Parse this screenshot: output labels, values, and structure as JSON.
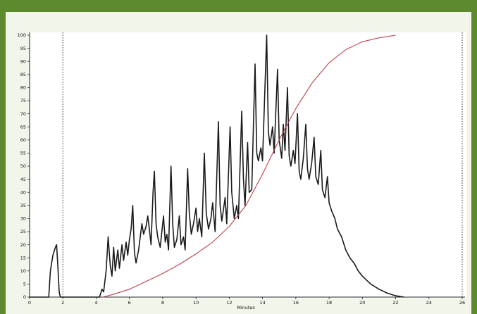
{
  "chart_data": {
    "type": "line",
    "title": "",
    "xlabel": "Minutes",
    "ylabel": "",
    "xlim": [
      0,
      26
    ],
    "ylim": [
      0,
      100
    ],
    "x_ticks": [
      0,
      2,
      4,
      6,
      8,
      10,
      12,
      14,
      16,
      18,
      20,
      22,
      24,
      26
    ],
    "y_ticks": [
      0,
      5,
      10,
      15,
      20,
      25,
      30,
      35,
      40,
      45,
      50,
      55,
      60,
      65,
      70,
      75,
      80,
      85,
      90,
      95,
      100
    ],
    "markers_x": [
      2,
      26
    ],
    "grid": false,
    "series": [
      {
        "color": "#1a1a1a",
        "points": [
          [
            0,
            0
          ],
          [
            1.15,
            0
          ],
          [
            1.25,
            10
          ],
          [
            1.4,
            16
          ],
          [
            1.55,
            19
          ],
          [
            1.62,
            20
          ],
          [
            1.7,
            12
          ],
          [
            1.78,
            2
          ],
          [
            1.85,
            0
          ],
          [
            4.2,
            0
          ],
          [
            4.35,
            3
          ],
          [
            4.45,
            2
          ],
          [
            4.6,
            10
          ],
          [
            4.72,
            23
          ],
          [
            4.85,
            12
          ],
          [
            4.95,
            8
          ],
          [
            5.05,
            19
          ],
          [
            5.15,
            10
          ],
          [
            5.3,
            18
          ],
          [
            5.4,
            11
          ],
          [
            5.55,
            20
          ],
          [
            5.65,
            14
          ],
          [
            5.8,
            21
          ],
          [
            5.9,
            16
          ],
          [
            6.0,
            22
          ],
          [
            6.1,
            26
          ],
          [
            6.2,
            35
          ],
          [
            6.3,
            17
          ],
          [
            6.4,
            13
          ],
          [
            6.55,
            18
          ],
          [
            6.75,
            28
          ],
          [
            6.85,
            24
          ],
          [
            7.0,
            27
          ],
          [
            7.1,
            31
          ],
          [
            7.2,
            26
          ],
          [
            7.3,
            20
          ],
          [
            7.42,
            40
          ],
          [
            7.5,
            48
          ],
          [
            7.6,
            28
          ],
          [
            7.7,
            23
          ],
          [
            7.85,
            19
          ],
          [
            7.95,
            25
          ],
          [
            8.05,
            31
          ],
          [
            8.15,
            21
          ],
          [
            8.25,
            24
          ],
          [
            8.35,
            18
          ],
          [
            8.5,
            50
          ],
          [
            8.6,
            28
          ],
          [
            8.7,
            19
          ],
          [
            8.85,
            22
          ],
          [
            9.0,
            31
          ],
          [
            9.1,
            20
          ],
          [
            9.25,
            23
          ],
          [
            9.35,
            18
          ],
          [
            9.5,
            49
          ],
          [
            9.6,
            32
          ],
          [
            9.72,
            24
          ],
          [
            9.85,
            28
          ],
          [
            10.0,
            34
          ],
          [
            10.1,
            25
          ],
          [
            10.2,
            30
          ],
          [
            10.35,
            23
          ],
          [
            10.5,
            55
          ],
          [
            10.62,
            32
          ],
          [
            10.75,
            26
          ],
          [
            10.9,
            30
          ],
          [
            11.0,
            36
          ],
          [
            11.15,
            25
          ],
          [
            11.35,
            67
          ],
          [
            11.45,
            35
          ],
          [
            11.55,
            29
          ],
          [
            11.75,
            38
          ],
          [
            11.85,
            28
          ],
          [
            12.05,
            65
          ],
          [
            12.15,
            40
          ],
          [
            12.3,
            30
          ],
          [
            12.45,
            35
          ],
          [
            12.55,
            30
          ],
          [
            12.75,
            71
          ],
          [
            12.85,
            45
          ],
          [
            12.95,
            35
          ],
          [
            13.1,
            59
          ],
          [
            13.2,
            40
          ],
          [
            13.35,
            41
          ],
          [
            13.55,
            89
          ],
          [
            13.65,
            55
          ],
          [
            13.75,
            52
          ],
          [
            13.9,
            57
          ],
          [
            14.0,
            52
          ],
          [
            14.25,
            100
          ],
          [
            14.35,
            63
          ],
          [
            14.45,
            58
          ],
          [
            14.6,
            65
          ],
          [
            14.7,
            55
          ],
          [
            14.9,
            87
          ],
          [
            15.0,
            60
          ],
          [
            15.15,
            53
          ],
          [
            15.25,
            66
          ],
          [
            15.35,
            56
          ],
          [
            15.5,
            80
          ],
          [
            15.6,
            54
          ],
          [
            15.7,
            50
          ],
          [
            15.85,
            56
          ],
          [
            15.95,
            51
          ],
          [
            16.1,
            70
          ],
          [
            16.2,
            48
          ],
          [
            16.3,
            45
          ],
          [
            16.45,
            53
          ],
          [
            16.6,
            66
          ],
          [
            16.7,
            49
          ],
          [
            16.8,
            45
          ],
          [
            16.95,
            51
          ],
          [
            17.1,
            61
          ],
          [
            17.2,
            46
          ],
          [
            17.35,
            43
          ],
          [
            17.5,
            56
          ],
          [
            17.6,
            41
          ],
          [
            17.75,
            38
          ],
          [
            17.9,
            46
          ],
          [
            18.0,
            36
          ],
          [
            18.15,
            33
          ],
          [
            18.35,
            30
          ],
          [
            18.5,
            26
          ],
          [
            18.75,
            23
          ],
          [
            19.0,
            18
          ],
          [
            19.25,
            15
          ],
          [
            19.5,
            13
          ],
          [
            19.75,
            10
          ],
          [
            20.0,
            8
          ],
          [
            20.5,
            5
          ],
          [
            21.0,
            3
          ],
          [
            21.5,
            1.5
          ],
          [
            22.0,
            0.5
          ],
          [
            22.5,
            0
          ]
        ]
      },
      {
        "color": "#c0404a",
        "points": [
          [
            4.4,
            0
          ],
          [
            5,
            1
          ],
          [
            6,
            3
          ],
          [
            7,
            6
          ],
          [
            8,
            9
          ],
          [
            9,
            12.5
          ],
          [
            10,
            16.5
          ],
          [
            11,
            21
          ],
          [
            12,
            27
          ],
          [
            13,
            35
          ],
          [
            14,
            47
          ],
          [
            15,
            60
          ],
          [
            16,
            72
          ],
          [
            17,
            82
          ],
          [
            18,
            89.5
          ],
          [
            19,
            94.5
          ],
          [
            20,
            97.5
          ],
          [
            21,
            99
          ],
          [
            22,
            100
          ]
        ]
      }
    ]
  }
}
